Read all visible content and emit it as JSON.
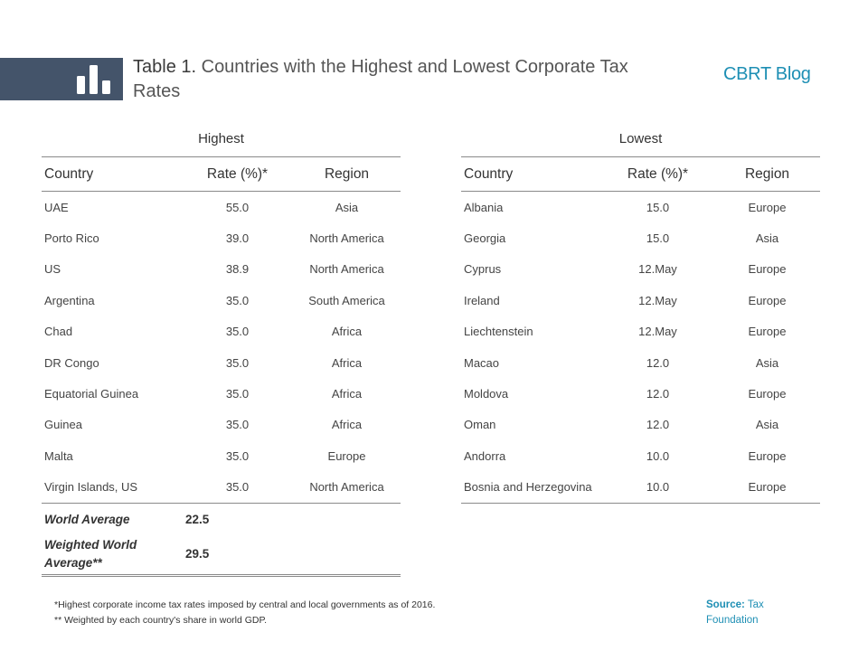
{
  "header": {
    "title_lead": "Table 1.",
    "title_rest": " Countries with the Highest and Lowest Corporate Tax Rates",
    "brand": "CBRT Blog",
    "logo_icon": "bar-chart-icon"
  },
  "columns": [
    "Country",
    "Rate (%)*",
    "Region"
  ],
  "highest": {
    "title": "Highest",
    "rows": [
      {
        "country": "UAE",
        "rate": "55.0",
        "region": "Asia"
      },
      {
        "country": "Porto Rico",
        "rate": "39.0",
        "region": "North America"
      },
      {
        "country": "US",
        "rate": "38.9",
        "region": "North America"
      },
      {
        "country": "Argentina",
        "rate": "35.0",
        "region": "South America"
      },
      {
        "country": "Chad",
        "rate": "35.0",
        "region": "Africa"
      },
      {
        "country": "DR Congo",
        "rate": "35.0",
        "region": "Africa"
      },
      {
        "country": "Equatorial Guinea",
        "rate": "35.0",
        "region": "Africa"
      },
      {
        "country": "Guinea",
        "rate": "35.0",
        "region": "Africa"
      },
      {
        "country": "Malta",
        "rate": "35.0",
        "region": "Europe"
      },
      {
        "country": "Virgin Islands, US",
        "rate": "35.0",
        "region": "North America"
      }
    ],
    "world_average": {
      "label": "World Average",
      "value": "22.5"
    },
    "weighted_average": {
      "label": "Weighted World Average**",
      "value": "29.5"
    }
  },
  "lowest": {
    "title": "Lowest",
    "rows": [
      {
        "country": "Albania",
        "rate": "15.0",
        "region": "Europe"
      },
      {
        "country": "Georgia",
        "rate": "15.0",
        "region": "Asia"
      },
      {
        "country": "Cyprus",
        "rate": "12.May",
        "region": "Europe"
      },
      {
        "country": "Ireland",
        "rate": "12.May",
        "region": "Europe"
      },
      {
        "country": "Liechtenstein",
        "rate": "12.May",
        "region": "Europe"
      },
      {
        "country": "Macao",
        "rate": "12.0",
        "region": "Asia"
      },
      {
        "country": "Moldova",
        "rate": "12.0",
        "region": "Europe"
      },
      {
        "country": "Oman",
        "rate": "12.0",
        "region": "Asia"
      },
      {
        "country": "Andorra",
        "rate": "10.0",
        "region": "Europe"
      },
      {
        "country": "Bosnia and Herzegovina",
        "rate": "10.0",
        "region": "Europe"
      }
    ]
  },
  "footnotes": [
    "*Highest corporate income tax rates imposed by central and local governments as of 2016.",
    "** Weighted by each country's share in world GDP."
  ],
  "source": {
    "label": "Source:",
    "text": " Tax Foundation"
  },
  "colors": {
    "logo_bar": "#44546a",
    "brand": "#1e8fb4"
  }
}
